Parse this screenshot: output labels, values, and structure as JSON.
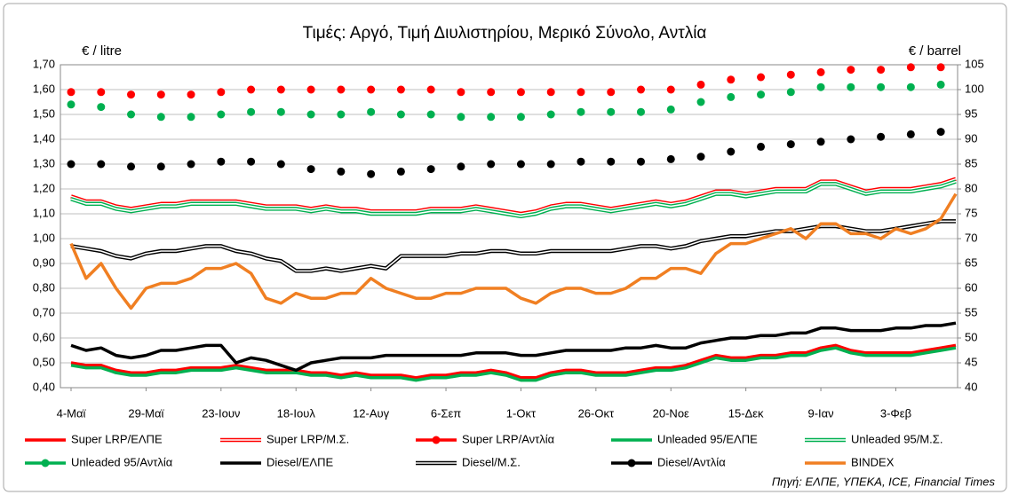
{
  "chart_data": {
    "type": "line",
    "title": "Τιμές: Αργό, Τιμή Διυλιστηρίου, Μερικό Σύνολο, Αντλία",
    "y_label": "€ / litre",
    "y2_label": "€ / barrel",
    "source": "Πηγή: ΕΛΠΕ, ΥΠΕΚΑ, ICE, Financial Times",
    "grid": true,
    "categories": [
      "4-Μαϊ",
      null,
      null,
      null,
      null,
      "29-Μαϊ",
      null,
      null,
      null,
      null,
      "23-Ιουν",
      null,
      null,
      null,
      null,
      "18-Ιουλ",
      null,
      null,
      null,
      null,
      "12-Αυγ",
      null,
      null,
      null,
      null,
      "6-Σεπ",
      null,
      null,
      null,
      null,
      "1-Οκτ",
      null,
      null,
      null,
      null,
      "26-Οκτ",
      null,
      null,
      null,
      null,
      "20-Νοε",
      null,
      null,
      null,
      null,
      "15-Δεκ",
      null,
      null,
      null,
      null,
      "9-Ιαν",
      null,
      null,
      null,
      null,
      "3-Φεβ",
      null,
      null,
      null,
      null
    ],
    "ylim": [
      0.4,
      1.7
    ],
    "yticks": [
      {
        "value": 0.4,
        "label": "0,40"
      },
      {
        "value": 0.5,
        "label": "0,50"
      },
      {
        "value": 0.6,
        "label": "0,60"
      },
      {
        "value": 0.7,
        "label": "0,70"
      },
      {
        "value": 0.8,
        "label": "0,80"
      },
      {
        "value": 0.9,
        "label": "0,90"
      },
      {
        "value": 1.0,
        "label": "1,00"
      },
      {
        "value": 1.1,
        "label": "1,10"
      },
      {
        "value": 1.2,
        "label": "1,20"
      },
      {
        "value": 1.3,
        "label": "1,30"
      },
      {
        "value": 1.4,
        "label": "1,40"
      },
      {
        "value": 1.5,
        "label": "1,50"
      },
      {
        "value": 1.6,
        "label": "1,60"
      },
      {
        "value": 1.7,
        "label": "1,70"
      }
    ],
    "y2lim": [
      40,
      105
    ],
    "y2ticks": [
      40,
      45,
      50,
      55,
      60,
      65,
      70,
      75,
      80,
      85,
      90,
      95,
      100,
      105
    ],
    "series": [
      {
        "name": "Super LRP/ΕΛΠΕ",
        "color": "#ff0000",
        "style": "solid",
        "values": [
          0.5,
          0.49,
          0.49,
          0.47,
          0.46,
          0.46,
          0.47,
          0.47,
          0.48,
          0.48,
          0.48,
          0.49,
          0.48,
          0.47,
          0.47,
          0.47,
          0.46,
          0.46,
          0.45,
          0.46,
          0.45,
          0.45,
          0.45,
          0.44,
          0.45,
          0.45,
          0.46,
          0.46,
          0.47,
          0.46,
          0.44,
          0.44,
          0.46,
          0.47,
          0.47,
          0.46,
          0.46,
          0.46,
          0.47,
          0.48,
          0.48,
          0.49,
          0.51,
          0.53,
          0.52,
          0.52,
          0.53,
          0.53,
          0.54,
          0.54,
          0.56,
          0.57,
          0.55,
          0.54,
          0.54,
          0.54,
          0.54,
          0.55,
          0.56,
          0.57
        ]
      },
      {
        "name": "Super LRP/Μ.Σ.",
        "color": "#ff0000",
        "style": "hollow",
        "values": [
          1.17,
          1.15,
          1.15,
          1.13,
          1.12,
          1.13,
          1.14,
          1.14,
          1.15,
          1.15,
          1.15,
          1.15,
          1.14,
          1.13,
          1.13,
          1.13,
          1.12,
          1.13,
          1.12,
          1.12,
          1.11,
          1.11,
          1.11,
          1.11,
          1.12,
          1.12,
          1.12,
          1.13,
          1.12,
          1.11,
          1.1,
          1.11,
          1.13,
          1.14,
          1.14,
          1.13,
          1.12,
          1.13,
          1.14,
          1.15,
          1.14,
          1.15,
          1.17,
          1.19,
          1.19,
          1.18,
          1.19,
          1.2,
          1.2,
          1.2,
          1.23,
          1.23,
          1.21,
          1.19,
          1.2,
          1.2,
          1.2,
          1.21,
          1.22,
          1.24
        ]
      },
      {
        "name": "Super LRP/Αντλία",
        "color": "#ff0000",
        "style": "dots",
        "values": [
          1.59,
          null,
          1.59,
          null,
          1.58,
          null,
          1.58,
          null,
          1.58,
          null,
          1.59,
          null,
          1.6,
          null,
          1.6,
          null,
          1.6,
          null,
          1.6,
          null,
          1.6,
          null,
          1.6,
          null,
          1.6,
          null,
          1.59,
          null,
          1.59,
          null,
          1.59,
          null,
          1.59,
          null,
          1.59,
          null,
          1.59,
          null,
          1.6,
          null,
          1.6,
          null,
          1.62,
          null,
          1.64,
          null,
          1.65,
          null,
          1.66,
          null,
          1.67,
          null,
          1.68,
          null,
          1.68,
          null,
          1.69,
          null,
          1.69,
          null
        ]
      },
      {
        "name": "Unleaded 95/ΕΛΠΕ",
        "color": "#00b050",
        "style": "solid",
        "values": [
          0.49,
          0.48,
          0.48,
          0.46,
          0.45,
          0.45,
          0.46,
          0.46,
          0.47,
          0.47,
          0.47,
          0.48,
          0.47,
          0.46,
          0.46,
          0.46,
          0.45,
          0.45,
          0.44,
          0.45,
          0.44,
          0.44,
          0.44,
          0.43,
          0.44,
          0.44,
          0.45,
          0.45,
          0.46,
          0.45,
          0.43,
          0.43,
          0.45,
          0.46,
          0.46,
          0.45,
          0.45,
          0.45,
          0.46,
          0.47,
          0.47,
          0.48,
          0.5,
          0.52,
          0.51,
          0.51,
          0.52,
          0.52,
          0.53,
          0.53,
          0.55,
          0.56,
          0.54,
          0.53,
          0.53,
          0.53,
          0.53,
          0.54,
          0.55,
          0.56
        ]
      },
      {
        "name": "Unleaded 95/Μ.Σ.",
        "color": "#00b050",
        "style": "hollow",
        "values": [
          1.16,
          1.14,
          1.14,
          1.12,
          1.11,
          1.12,
          1.13,
          1.13,
          1.14,
          1.14,
          1.14,
          1.14,
          1.13,
          1.12,
          1.12,
          1.12,
          1.11,
          1.12,
          1.11,
          1.11,
          1.1,
          1.1,
          1.1,
          1.1,
          1.11,
          1.11,
          1.11,
          1.12,
          1.11,
          1.1,
          1.09,
          1.1,
          1.12,
          1.13,
          1.13,
          1.12,
          1.11,
          1.12,
          1.13,
          1.14,
          1.13,
          1.14,
          1.16,
          1.18,
          1.18,
          1.17,
          1.18,
          1.19,
          1.19,
          1.19,
          1.22,
          1.22,
          1.2,
          1.18,
          1.19,
          1.19,
          1.19,
          1.2,
          1.21,
          1.23
        ]
      },
      {
        "name": "Unleaded 95/Αντλία",
        "color": "#00b050",
        "style": "dots",
        "values": [
          1.54,
          null,
          1.53,
          null,
          1.5,
          null,
          1.49,
          null,
          1.49,
          null,
          1.5,
          null,
          1.51,
          null,
          1.51,
          null,
          1.5,
          null,
          1.5,
          null,
          1.51,
          null,
          1.5,
          null,
          1.5,
          null,
          1.49,
          null,
          1.49,
          null,
          1.49,
          null,
          1.5,
          null,
          1.51,
          null,
          1.51,
          null,
          1.51,
          null,
          1.52,
          null,
          1.55,
          null,
          1.57,
          null,
          1.58,
          null,
          1.59,
          null,
          1.61,
          null,
          1.61,
          null,
          1.61,
          null,
          1.61,
          null,
          1.62,
          null
        ]
      },
      {
        "name": "Diesel/ΕΛΠΕ",
        "color": "#000000",
        "style": "solid",
        "values": [
          0.57,
          0.55,
          0.56,
          0.53,
          0.52,
          0.53,
          0.55,
          0.55,
          0.56,
          0.57,
          0.57,
          0.5,
          0.52,
          0.51,
          0.49,
          0.47,
          0.5,
          0.51,
          0.52,
          0.52,
          0.52,
          0.53,
          0.53,
          0.53,
          0.53,
          0.53,
          0.53,
          0.54,
          0.54,
          0.54,
          0.53,
          0.53,
          0.54,
          0.55,
          0.55,
          0.55,
          0.55,
          0.56,
          0.56,
          0.57,
          0.56,
          0.56,
          0.58,
          0.59,
          0.6,
          0.6,
          0.61,
          0.61,
          0.62,
          0.62,
          0.64,
          0.64,
          0.63,
          0.63,
          0.63,
          0.64,
          0.64,
          0.65,
          0.65,
          0.66
        ]
      },
      {
        "name": "Diesel/Μ.Σ.",
        "color": "#000000",
        "style": "hollow",
        "values": [
          0.97,
          0.96,
          0.95,
          0.93,
          0.92,
          0.94,
          0.95,
          0.95,
          0.96,
          0.97,
          0.97,
          0.95,
          0.94,
          0.92,
          0.91,
          0.87,
          0.87,
          0.88,
          0.87,
          0.88,
          0.89,
          0.88,
          0.93,
          0.93,
          0.93,
          0.93,
          0.94,
          0.94,
          0.95,
          0.95,
          0.94,
          0.94,
          0.95,
          0.95,
          0.95,
          0.95,
          0.95,
          0.96,
          0.97,
          0.97,
          0.96,
          0.97,
          0.99,
          1.0,
          1.01,
          1.01,
          1.02,
          1.03,
          1.03,
          1.04,
          1.05,
          1.05,
          1.04,
          1.03,
          1.03,
          1.04,
          1.05,
          1.06,
          1.07,
          1.07
        ]
      },
      {
        "name": "Diesel/Αντλία",
        "color": "#000000",
        "style": "dots",
        "values": [
          1.3,
          null,
          1.3,
          null,
          1.29,
          null,
          1.29,
          null,
          1.3,
          null,
          1.31,
          null,
          1.31,
          null,
          1.3,
          null,
          1.28,
          null,
          1.27,
          null,
          1.26,
          null,
          1.27,
          null,
          1.28,
          null,
          1.29,
          null,
          1.3,
          null,
          1.3,
          null,
          1.3,
          null,
          1.31,
          null,
          1.31,
          null,
          1.31,
          null,
          1.32,
          null,
          1.33,
          null,
          1.35,
          null,
          1.37,
          null,
          1.38,
          null,
          1.39,
          null,
          1.4,
          null,
          1.41,
          null,
          1.42,
          null,
          1.43,
          null
        ]
      },
      {
        "name": "BINDEX",
        "color": "#f07f22",
        "style": "solid",
        "axis": "y2",
        "values": [
          69,
          62,
          65,
          60,
          56,
          60,
          61,
          61,
          62,
          64,
          64,
          65,
          63,
          58,
          57,
          59,
          58,
          58,
          59,
          59,
          62,
          60,
          59,
          58,
          58,
          59,
          59,
          60,
          60,
          60,
          58,
          57,
          59,
          60,
          60,
          59,
          59,
          60,
          62,
          62,
          64,
          64,
          63,
          67,
          69,
          69,
          70,
          71,
          72,
          70,
          73,
          73,
          71,
          71,
          70,
          72,
          71,
          72,
          74,
          79
        ]
      }
    ]
  }
}
